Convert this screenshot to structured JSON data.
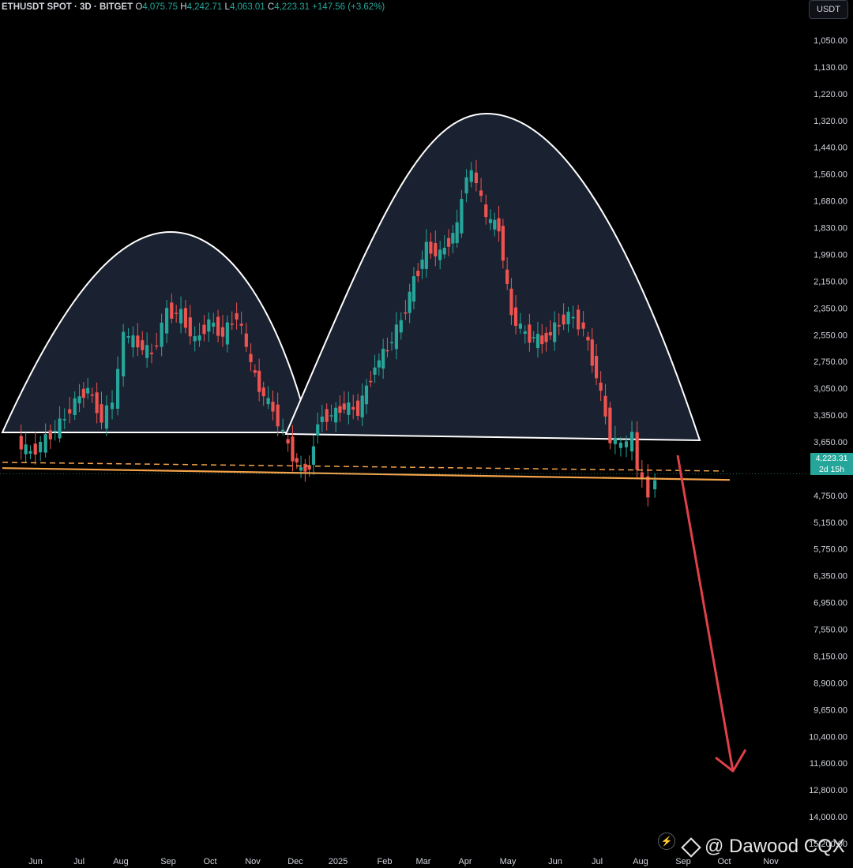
{
  "header": {
    "symbol": "ETHUSDT SPOT · 3D · BITGET",
    "open_label": "O",
    "open": "4,075.75",
    "high_label": "H",
    "high": "4,242.71",
    "low_label": "L",
    "low": "4,063.01",
    "close_label": "C",
    "close": "4,223.31",
    "change": "+147.56 (+3.62%)"
  },
  "currency": "USDT",
  "price_tag": {
    "price": "4,223.31",
    "countdown": "2d 15h"
  },
  "watermark": "@ Dawood CQX",
  "colors": {
    "up": "#26a69a",
    "down": "#ef5350",
    "arc_fill": "#1a2130",
    "arc_stroke": "#ffffff",
    "neckline": "#f5a34a",
    "arrow": "#e0404a",
    "axis_text": "#d1d4dc"
  },
  "chart_data": {
    "type": "candlestick",
    "title": "ETHUSDT SPOT · 3D · BITGET",
    "y_axis_inverted": true,
    "y_ticks": [
      "1,050.00",
      "1,130.00",
      "1,220.00",
      "1,320.00",
      "1,440.00",
      "1,560.00",
      "1,680.00",
      "1,830.00",
      "1,990.00",
      "2,150.00",
      "2,350.00",
      "2,550.00",
      "2,750.00",
      "3,050.00",
      "3,350.00",
      "3,650.00",
      "3,950.00",
      "4,750.00",
      "5,150.00",
      "5,750.00",
      "6,350.00",
      "6,950.00",
      "7,550.00",
      "8,150.00",
      "8,900.00",
      "9,650.00",
      "10,400.00",
      "11,600.00",
      "12,800.00",
      "14,000.00",
      "15,200.00"
    ],
    "x_ticks": [
      "Jun",
      "Jul",
      "Aug",
      "Sep",
      "Oct",
      "Nov",
      "Dec",
      "2025",
      "Feb",
      "Mar",
      "Apr",
      "May",
      "Jun",
      "Jul",
      "Aug",
      "Sep",
      "Oct",
      "Nov"
    ],
    "close_series": [
      {
        "t": "2024-05-20",
        "v": 3650
      },
      {
        "t": "2024-05-30",
        "v": 3780
      },
      {
        "t": "2024-06-10",
        "v": 3620
      },
      {
        "t": "2024-06-20",
        "v": 3450
      },
      {
        "t": "2024-07-01",
        "v": 3200
      },
      {
        "t": "2024-07-10",
        "v": 3050
      },
      {
        "t": "2024-07-20",
        "v": 3400
      },
      {
        "t": "2024-07-28",
        "v": 3200
      },
      {
        "t": "2024-08-05",
        "v": 2550
      },
      {
        "t": "2024-08-15",
        "v": 2620
      },
      {
        "t": "2024-08-25",
        "v": 2700
      },
      {
        "t": "2024-09-05",
        "v": 2380
      },
      {
        "t": "2024-09-15",
        "v": 2400
      },
      {
        "t": "2024-09-25",
        "v": 2600
      },
      {
        "t": "2024-10-05",
        "v": 2450
      },
      {
        "t": "2024-10-15",
        "v": 2550
      },
      {
        "t": "2024-10-25",
        "v": 2400
      },
      {
        "t": "2024-11-01",
        "v": 2650
      },
      {
        "t": "2024-11-10",
        "v": 3050
      },
      {
        "t": "2024-11-20",
        "v": 3300
      },
      {
        "t": "2024-12-01",
        "v": 3700
      },
      {
        "t": "2024-12-10",
        "v": 4000
      },
      {
        "t": "2024-12-16",
        "v": 3950
      },
      {
        "t": "2024-12-22",
        "v": 3400
      },
      {
        "t": "2025-01-01",
        "v": 3350
      },
      {
        "t": "2025-01-10",
        "v": 3250
      },
      {
        "t": "2025-01-20",
        "v": 3300
      },
      {
        "t": "2025-02-01",
        "v": 2800
      },
      {
        "t": "2025-02-10",
        "v": 2650
      },
      {
        "t": "2025-02-20",
        "v": 2450
      },
      {
        "t": "2025-03-01",
        "v": 2150
      },
      {
        "t": "2025-03-10",
        "v": 1950
      },
      {
        "t": "2025-03-20",
        "v": 1990
      },
      {
        "t": "2025-04-01",
        "v": 1830
      },
      {
        "t": "2025-04-08",
        "v": 1550
      },
      {
        "t": "2025-04-15",
        "v": 1590
      },
      {
        "t": "2025-04-22",
        "v": 1780
      },
      {
        "t": "2025-05-01",
        "v": 1830
      },
      {
        "t": "2025-05-10",
        "v": 2400
      },
      {
        "t": "2025-05-20",
        "v": 2550
      },
      {
        "t": "2025-06-01",
        "v": 2600
      },
      {
        "t": "2025-06-10",
        "v": 2500
      },
      {
        "t": "2025-06-20",
        "v": 2400
      },
      {
        "t": "2025-07-01",
        "v": 2500
      },
      {
        "t": "2025-07-10",
        "v": 2900
      },
      {
        "t": "2025-07-20",
        "v": 3600
      },
      {
        "t": "2025-07-28",
        "v": 3700
      },
      {
        "t": "2025-08-05",
        "v": 3600
      },
      {
        "t": "2025-08-12",
        "v": 4300
      },
      {
        "t": "2025-08-17",
        "v": 4700
      },
      {
        "t": "2025-08-22",
        "v": 4223.31
      }
    ],
    "neckline": {
      "solid": 4050,
      "dashed": 3950
    },
    "projection_target": 11600
  }
}
